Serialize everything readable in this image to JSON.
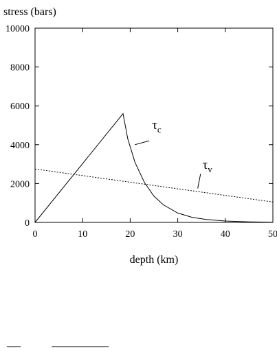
{
  "chart_data": {
    "type": "line",
    "title": "",
    "ylabel": "stress (bars)",
    "xlabel": "depth (km)",
    "xlim": [
      0,
      50
    ],
    "ylim": [
      0,
      10000
    ],
    "xticks": [
      0,
      10,
      20,
      30,
      40,
      50
    ],
    "yticks": [
      0,
      2000,
      4000,
      6000,
      8000,
      10000
    ],
    "grid": false,
    "series": [
      {
        "name": "τc",
        "style": "solid",
        "x": [
          0,
          18.5,
          19.5,
          21,
          23,
          25,
          27,
          30,
          33,
          36,
          40,
          45,
          50
        ],
        "y": [
          0,
          5600,
          4300,
          3100,
          2050,
          1350,
          900,
          480,
          260,
          150,
          70,
          30,
          10
        ]
      },
      {
        "name": "τv",
        "style": "dotted",
        "x": [
          0,
          50
        ],
        "y": [
          2750,
          1050
        ]
      }
    ],
    "annotations": [
      {
        "symbol": "τ",
        "subscript": "c",
        "text_x": 24.6,
        "text_y": 4800,
        "leader": [
          [
            24,
            4200
          ],
          [
            21,
            4000
          ]
        ]
      },
      {
        "symbol": "τ",
        "subscript": "v",
        "text_x": 35.2,
        "text_y": 2750,
        "leader": [
          [
            34.8,
            2500
          ],
          [
            34.2,
            1750
          ]
        ]
      }
    ]
  }
}
